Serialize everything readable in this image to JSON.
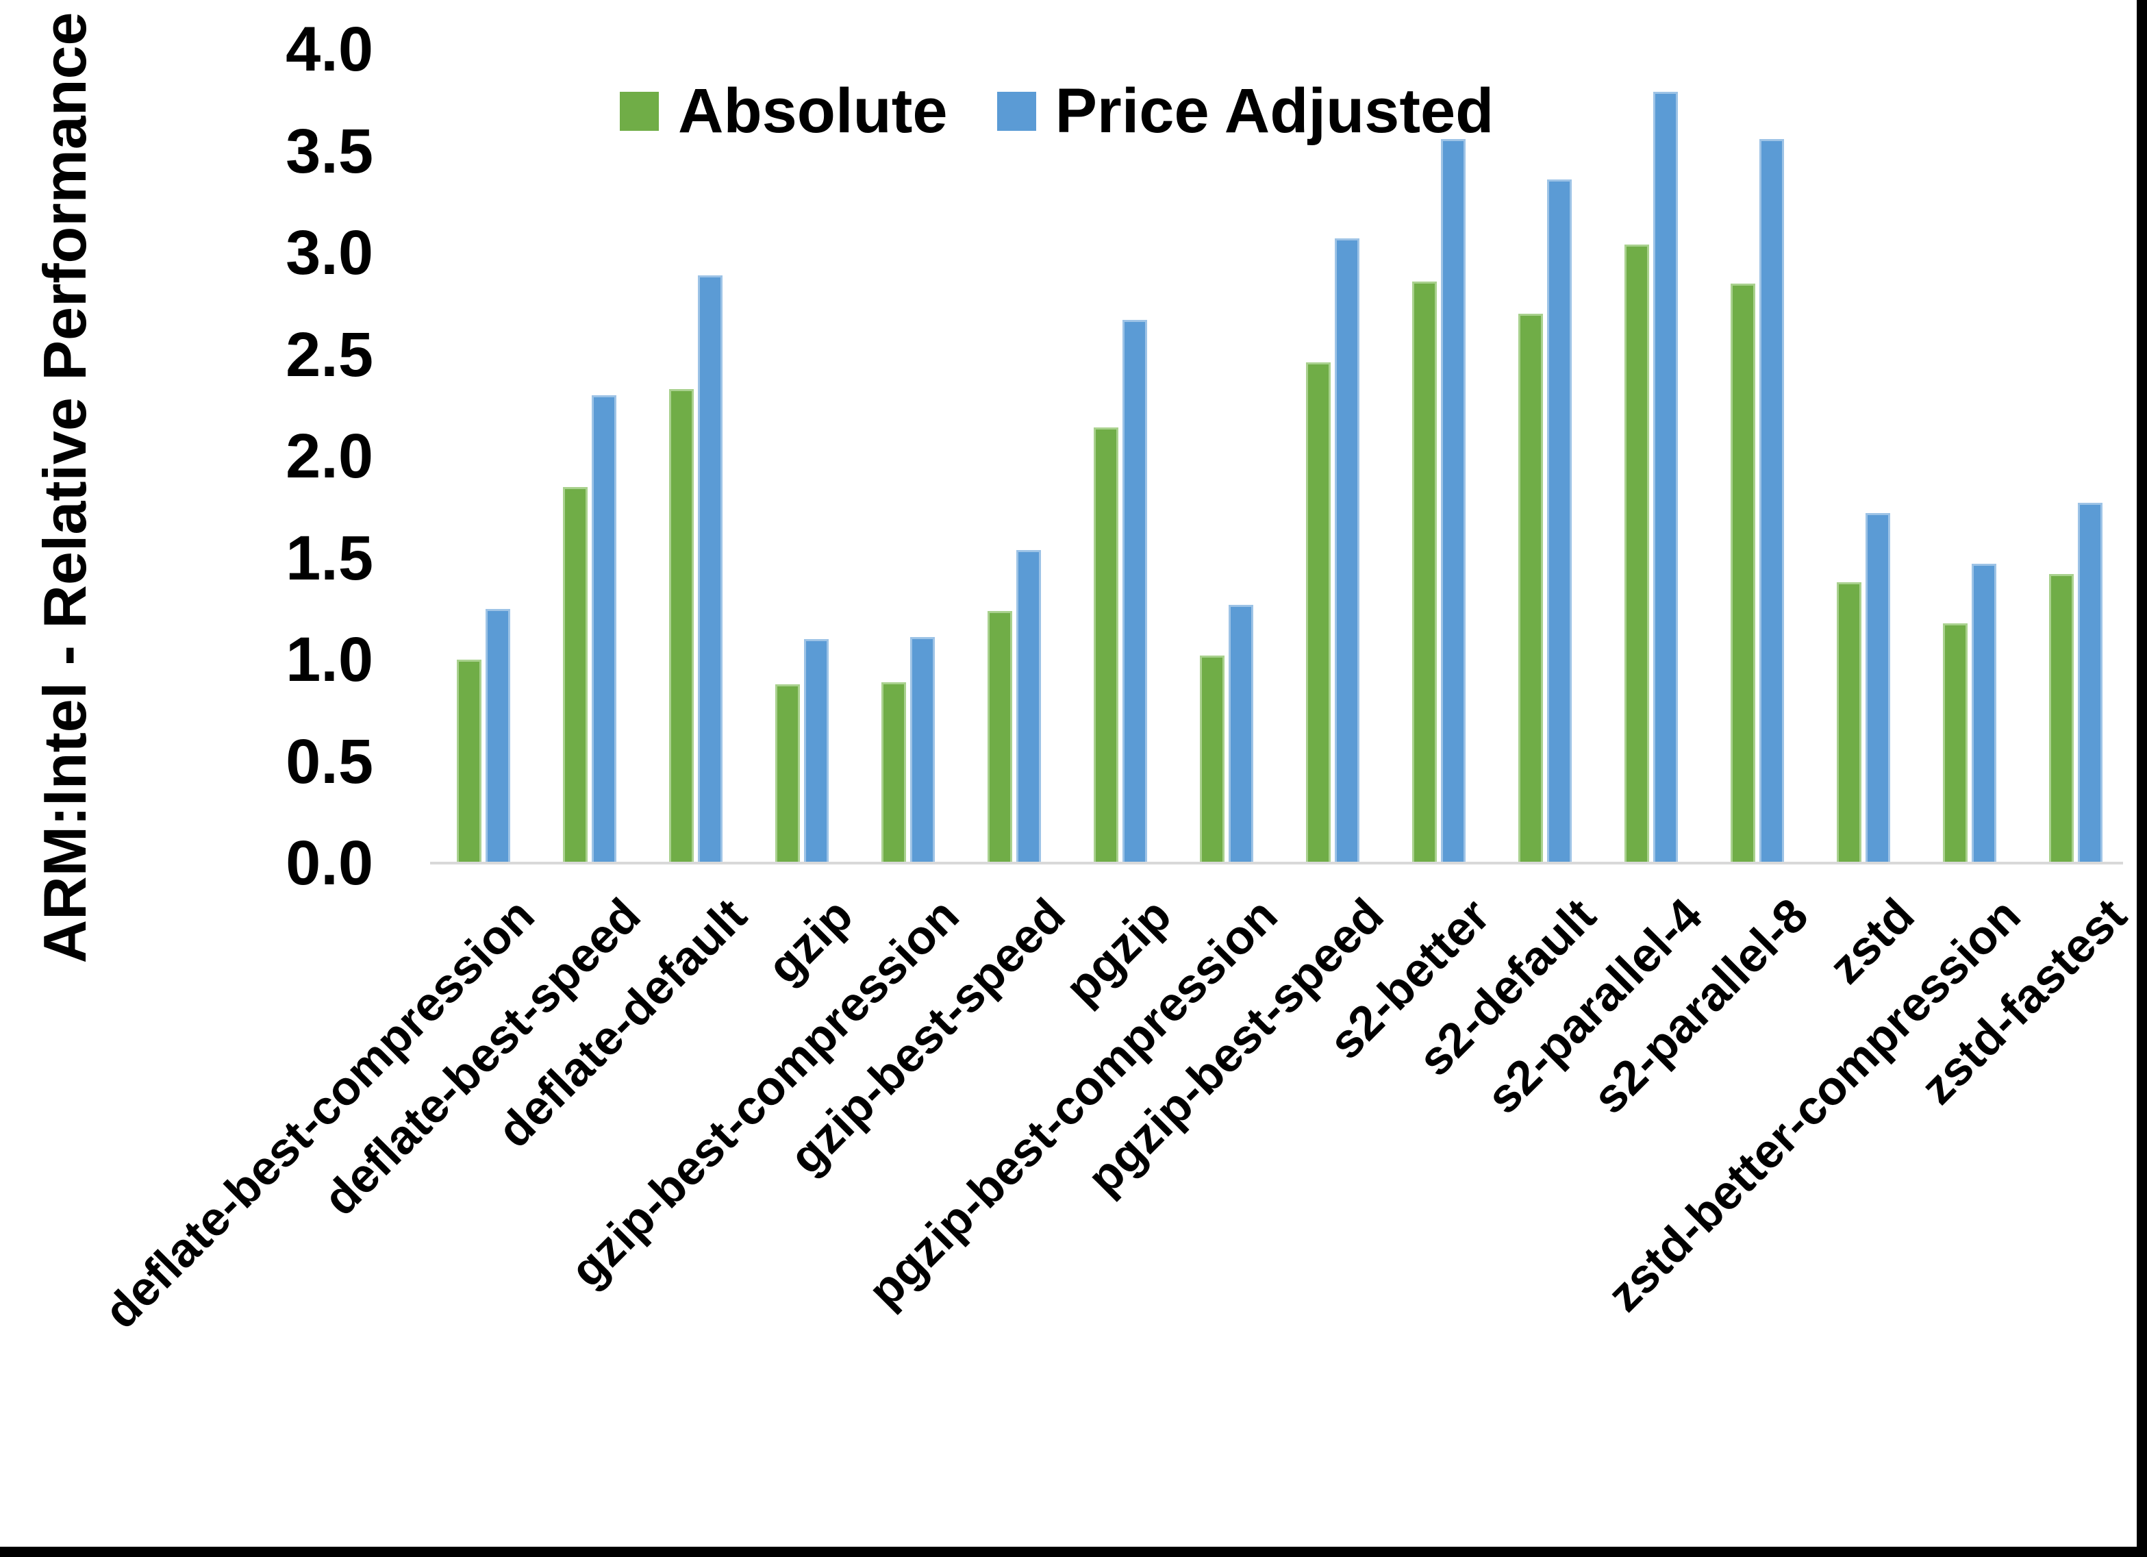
{
  "figure": {
    "background": "#ffffff",
    "frame_color": "#000000",
    "axis_line_color": "#d9d9d9",
    "text_color": "#000000"
  },
  "chart_data": {
    "type": "bar",
    "title": "",
    "xlabel": "",
    "ylabel": "ARM:Intel - Relative Performance",
    "ylim": [
      0.0,
      4.0
    ],
    "y_tick_step": 0.5,
    "y_ticks": [
      "0.0",
      "0.5",
      "1.0",
      "1.5",
      "2.0",
      "2.5",
      "3.0",
      "3.5",
      "4.0"
    ],
    "grid": false,
    "legend_position": "top-center",
    "categories": [
      "deflate-best-compression",
      "deflate-best-speed",
      "deflate-default",
      "gzip",
      "gzip-best-compression",
      "gzip-best-speed",
      "pgzip",
      "pgzip-best-compression",
      "pgzip-best-speed",
      "s2-better",
      "s2-default",
      "s2-parallel-4",
      "s2-parallel-8",
      "zstd",
      "zstd-better-compression",
      "zstd-fastest"
    ],
    "series": [
      {
        "name": "Absolute",
        "color": "#70ad47",
        "border_color": "#a9d18e",
        "values": [
          1.0,
          1.85,
          2.33,
          0.88,
          0.89,
          1.24,
          2.14,
          1.02,
          2.46,
          2.86,
          2.7,
          3.04,
          2.85,
          1.38,
          1.18,
          1.42
        ]
      },
      {
        "name": "Price Adjusted",
        "color": "#5b9bd5",
        "border_color": "#9dc3e6",
        "values": [
          1.25,
          2.3,
          2.89,
          1.1,
          1.11,
          1.54,
          2.67,
          1.27,
          3.07,
          3.56,
          3.36,
          3.79,
          3.56,
          1.72,
          1.47,
          1.77
        ]
      }
    ]
  }
}
